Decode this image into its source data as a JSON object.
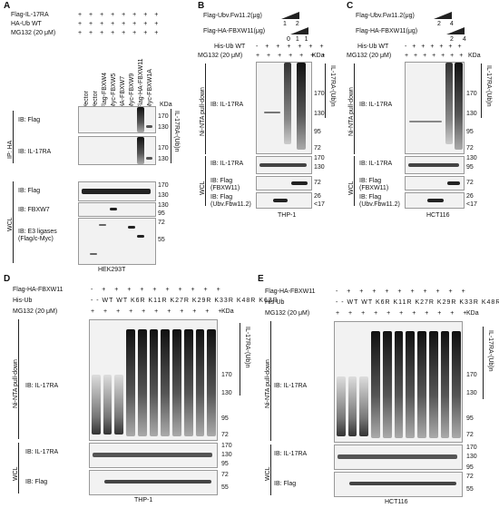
{
  "panelA": {
    "letter": "A",
    "rows": [
      {
        "label": "Flag-IL-17RA",
        "marks": "+ + + + + + + +"
      },
      {
        "label": "HA-Ub WT",
        "marks": "+ + + + + + + +"
      },
      {
        "label": "MG132 (20 μM)",
        "marks": "+ + + + + + + +"
      }
    ],
    "lanes": [
      "Vector",
      "Vector",
      "Flag-FBXW4",
      "Myc-FBXW5",
      "HA-FBXW7",
      "Myc-FBXW9",
      "Flag-HA-FBXW11",
      "Myc-FBXW1A"
    ],
    "kda": "KDa",
    "blots": [
      {
        "label": "IB: Flag",
        "marks": [
          "170",
          "130"
        ]
      },
      {
        "label": "IB: IL-17RA",
        "marks": [
          "170",
          "130"
        ]
      },
      {
        "label": "IB: Flag",
        "marks": [
          "170",
          "130"
        ]
      },
      {
        "label": "IB: FBXW7",
        "marks": [
          "130",
          "95"
        ]
      },
      {
        "label": "IB: E3 ligases (Flag/c-Myc)",
        "marks": [
          "72",
          "55"
        ]
      }
    ],
    "group_ip": "IP: HA",
    "group_wcl": "WCL",
    "ub_label": "IL-17RA-(Ub)n",
    "cell": "HEK293T"
  },
  "panelB": {
    "letter": "B",
    "rows": [
      {
        "label": "Flag-Ubv.Fw11.2(μg)",
        "marks": "1 2"
      },
      {
        "label": "Flag-HA-FBXW11(μg)",
        "marks": "0 1 1"
      },
      {
        "label": "His-Ub WT",
        "marks": "- + + + + + +"
      },
      {
        "label": "MG132 (20 μM)",
        "marks": "+ + + + + + +"
      }
    ],
    "kda": "KDa",
    "pd": "Ni-NTA pull-down",
    "wcl": "WCL",
    "blots": [
      {
        "label": "IB: IL-17RA",
        "marks": [
          "170",
          "130",
          "95",
          "72"
        ]
      },
      {
        "label": "IB: IL-17RA",
        "marks": [
          "170",
          "130"
        ]
      },
      {
        "label": "IB: Flag (FBXW11)",
        "marks": [
          "72"
        ]
      },
      {
        "label": "IB: Flag (Ubv.Fbw11.2)",
        "marks": [
          "26",
          "<17"
        ]
      }
    ],
    "ub_label": "IL-17RA-(Ub)n",
    "cell": "THP-1"
  },
  "panelC": {
    "letter": "C",
    "rows": [
      {
        "label": "Flag-Ubv.Fw11.2(μg)",
        "marks": "2 4"
      },
      {
        "label": "Flag-HA-FBXW11(μg)",
        "marks": "2 4"
      },
      {
        "label": "His-Ub WT",
        "marks": "- + + + + + +"
      },
      {
        "label": "MG132 (20 μM)",
        "marks": "+ + + + + + +"
      }
    ],
    "kda": "KDa",
    "pd": "Ni-NTA pull-down",
    "wcl": "WCL",
    "blots": [
      {
        "label": "IB: IL-17RA",
        "marks": [
          "170",
          "130",
          "95",
          "72"
        ]
      },
      {
        "label": "IB: IL-17RA",
        "marks": [
          "130",
          "95"
        ]
      },
      {
        "label": "IB: Flag (FBXW11)",
        "marks": [
          "72"
        ]
      },
      {
        "label": "IB: Flag (Ubv.Fbw11.2)",
        "marks": [
          "26",
          "<17"
        ]
      }
    ],
    "ub_label": "IL-17RA-(Ub)n",
    "cell": "HCT116"
  },
  "panelD": {
    "letter": "D",
    "rows": [
      {
        "label": "Flag-HA-FBXW11",
        "marks": "- + + + + + + + + + +"
      },
      {
        "label": "His-Ub",
        "marks": "- - WT WT K6R K11R K27R K29R K33R K48R K63R"
      },
      {
        "label": "MG132 (20 μM)",
        "marks": "+ + + + + + + + + + +"
      }
    ],
    "kda": "KDa",
    "pd": "Ni-NTA pull-down",
    "wcl": "WCL",
    "blots": [
      {
        "label": "IB: IL-17RA",
        "marks": [
          "170",
          "130",
          "95",
          "72"
        ]
      },
      {
        "label": "IB: IL-17RA",
        "marks": [
          "170",
          "130",
          "95"
        ]
      },
      {
        "label": "IB: Flag",
        "marks": [
          "72",
          "55"
        ]
      }
    ],
    "ub_label": "IL-17RA-(Ub)n",
    "cell": "THP-1"
  },
  "panelE": {
    "letter": "E",
    "rows": [
      {
        "label": "Flag-HA-FBXW11",
        "marks": "- + + + + + + + + + +"
      },
      {
        "label": "His-Ub",
        "marks": "- - WT WT K6R K11R K27R K29R K33R K48R K63R"
      },
      {
        "label": "MG132 (20 μM)",
        "marks": "+ + + + + + + + + + +"
      }
    ],
    "kda": "KDa",
    "pd": "Ni-NTA pull-down",
    "wcl": "WCL",
    "blots": [
      {
        "label": "IB: IL-17RA",
        "marks": [
          "170",
          "130",
          "95",
          "72"
        ]
      },
      {
        "label": "IB: IL-17RA",
        "marks": [
          "170",
          "130",
          "95"
        ]
      },
      {
        "label": "IB: Flag",
        "marks": [
          "72",
          "55"
        ]
      }
    ],
    "ub_label": "IL-17RA-(Ub)n",
    "cell": "HCT116"
  }
}
